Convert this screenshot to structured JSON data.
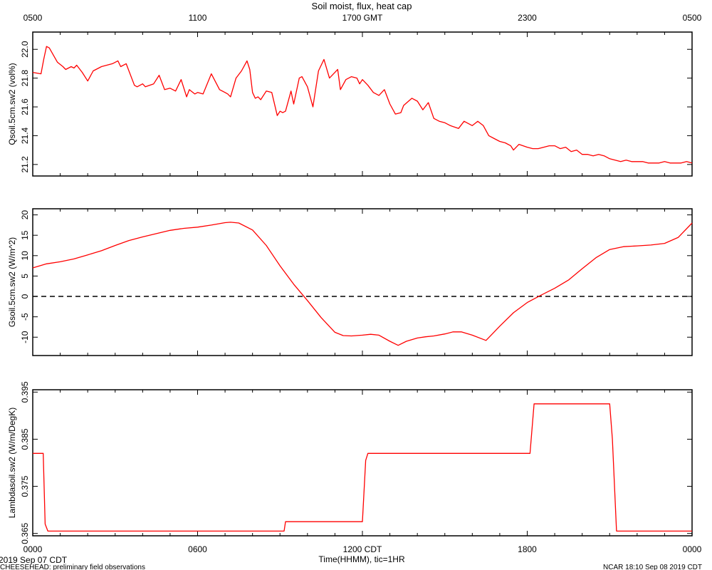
{
  "title": "Soil moist, flux, heat cap",
  "top_axis": {
    "ticks": [
      {
        "label": "0500",
        "h": 0
      },
      {
        "label": "1100",
        "h": 6
      },
      {
        "label": "1700 GMT",
        "h": 12
      },
      {
        "label": "2300",
        "h": 18
      },
      {
        "label": "0500",
        "h": 24
      }
    ]
  },
  "bottom_axis": {
    "ticks": [
      {
        "label": "0000",
        "h": 0
      },
      {
        "label": "0600",
        "h": 6
      },
      {
        "label": "1200 CDT",
        "h": 12
      },
      {
        "label": "1800",
        "h": 18
      },
      {
        "label": "0000",
        "h": 24
      }
    ],
    "xlabel": "Time(HHMM), tic=1HR"
  },
  "footer": {
    "date_left": "2019 Sep 07 CDT",
    "project": "CHEESEHEAD: preliminary field observations",
    "stamp": "NCAR 18:10 Sep 08 2019 CDT"
  },
  "colors": {
    "series": "#ff0000",
    "axis": "#000000"
  },
  "chart_data": [
    {
      "type": "line",
      "ylabel": "Qsoil.5cm.sw2 (vol%)",
      "ylim": [
        21.12,
        22.12
      ],
      "yticks": [
        21.2,
        21.4,
        21.6,
        21.8,
        22.0
      ],
      "ytick_labels": [
        "21.2",
        "21.4",
        "21.6",
        "21.8",
        "22.0"
      ],
      "x_hours": [
        0,
        0.3,
        0.4,
        0.5,
        0.6,
        0.9,
        1.1,
        1.2,
        1.4,
        1.5,
        1.6,
        1.8,
        2.0,
        2.2,
        2.5,
        2.9,
        3.1,
        3.2,
        3.4,
        3.7,
        3.8,
        4.0,
        4.1,
        4.4,
        4.6,
        4.8,
        5.0,
        5.1,
        5.2,
        5.4,
        5.6,
        5.7,
        5.9,
        6.0,
        6.2,
        6.5,
        6.8,
        7.0,
        7.1,
        7.2,
        7.4,
        7.6,
        7.8,
        7.9,
        8.0,
        8.1,
        8.2,
        8.3,
        8.5,
        8.7,
        8.9,
        9.0,
        9.1,
        9.2,
        9.4,
        9.5,
        9.7,
        9.8,
        10.0,
        10.2,
        10.4,
        10.6,
        10.8,
        11.0,
        11.1,
        11.2,
        11.4,
        11.6,
        11.8,
        11.9,
        12.0,
        12.2,
        12.4,
        12.6,
        12.8,
        13.0,
        13.2,
        13.4,
        13.5,
        13.8,
        14.0,
        14.2,
        14.4,
        14.6,
        14.8,
        15.0,
        15.2,
        15.5,
        15.7,
        15.9,
        16.0,
        16.2,
        16.4,
        16.6,
        16.8,
        17.0,
        17.2,
        17.4,
        17.5,
        17.7,
        18.0,
        18.2,
        18.4,
        18.6,
        18.8,
        19.0,
        19.2,
        19.4,
        19.6,
        19.8,
        20.0,
        20.2,
        20.4,
        20.6,
        20.8,
        21.0,
        21.2,
        21.4,
        21.6,
        21.8,
        22.0,
        22.2,
        22.4,
        22.6,
        22.8,
        23.0,
        23.2,
        23.4,
        23.6,
        23.8,
        24.0
      ],
      "values": [
        21.84,
        21.83,
        21.93,
        22.02,
        22.01,
        21.91,
        21.88,
        21.86,
        21.88,
        21.87,
        21.89,
        21.84,
        21.78,
        21.85,
        21.88,
        21.9,
        21.92,
        21.88,
        21.9,
        21.75,
        21.74,
        21.76,
        21.74,
        21.76,
        21.82,
        21.72,
        21.73,
        21.72,
        21.71,
        21.79,
        21.67,
        21.72,
        21.69,
        21.7,
        21.69,
        21.83,
        21.72,
        21.7,
        21.69,
        21.67,
        21.8,
        21.85,
        21.92,
        21.86,
        21.7,
        21.66,
        21.67,
        21.65,
        21.71,
        21.7,
        21.54,
        21.57,
        21.56,
        21.57,
        21.71,
        21.62,
        21.8,
        21.81,
        21.74,
        21.6,
        21.85,
        21.93,
        21.8,
        21.84,
        21.86,
        21.72,
        21.79,
        21.81,
        21.8,
        21.76,
        21.79,
        21.75,
        21.7,
        21.68,
        21.72,
        21.62,
        21.55,
        21.56,
        21.61,
        21.66,
        21.64,
        21.58,
        21.63,
        21.52,
        21.5,
        21.49,
        21.47,
        21.45,
        21.5,
        21.48,
        21.47,
        21.5,
        21.47,
        21.4,
        21.38,
        21.36,
        21.35,
        21.33,
        21.3,
        21.34,
        21.32,
        21.31,
        21.31,
        21.32,
        21.33,
        21.33,
        21.31,
        21.32,
        21.29,
        21.3,
        21.27,
        21.27,
        21.26,
        21.27,
        21.26,
        21.24,
        21.23,
        21.22,
        21.23,
        21.22,
        21.22,
        21.22,
        21.21,
        21.21,
        21.21,
        21.22,
        21.21,
        21.21,
        21.21,
        21.22,
        21.21
      ]
    },
    {
      "type": "line",
      "ylabel": "Gsoil.5cm.sw2 (W/m^2)",
      "ylim": [
        -14.5,
        21.5
      ],
      "yticks": [
        -10,
        -5,
        0,
        5,
        10,
        15,
        20
      ],
      "ytick_labels": [
        "-10",
        "-5",
        "0",
        "5",
        "10",
        "15",
        "20"
      ],
      "reference_line": 0,
      "x_hours": [
        0,
        0.5,
        1,
        1.5,
        2,
        2.5,
        3,
        3.5,
        4,
        4.5,
        5,
        5.5,
        6,
        6.5,
        7,
        7.2,
        7.5,
        8,
        8.5,
        9,
        9.5,
        10,
        10.5,
        11,
        11.3,
        11.6,
        12,
        12.3,
        12.6,
        13,
        13.3,
        13.6,
        14,
        14.3,
        14.6,
        15,
        15.3,
        15.6,
        16,
        16.5,
        17,
        17.5,
        18,
        18.5,
        19,
        19.5,
        20,
        20.5,
        21,
        21.5,
        22,
        22.5,
        23,
        23.5,
        24
      ],
      "values": [
        7,
        8,
        8.5,
        9.2,
        10.2,
        11.2,
        12.5,
        13.7,
        14.6,
        15.4,
        16.2,
        16.7,
        17.0,
        17.5,
        18.1,
        18.2,
        18.0,
        16.3,
        12.5,
        7.5,
        3.0,
        -1.0,
        -5.2,
        -8.8,
        -9.6,
        -9.7,
        -9.5,
        -9.3,
        -9.5,
        -11.0,
        -12.0,
        -11.0,
        -10.2,
        -9.9,
        -9.7,
        -9.2,
        -8.7,
        -8.7,
        -9.5,
        -10.8,
        -7.3,
        -4.0,
        -1.5,
        0.3,
        2.0,
        4.0,
        6.8,
        9.5,
        11.5,
        12.2,
        12.4,
        12.6,
        13.0,
        14.5,
        18.0
      ]
    },
    {
      "type": "line",
      "ylabel": "Lambdasoil.sw2 (W/m/DegK)",
      "ylim": [
        0.3645,
        0.3955
      ],
      "yticks": [
        0.365,
        0.375,
        0.385,
        0.395
      ],
      "ytick_labels": [
        "0.365",
        "0.375",
        "0.385",
        "0.395"
      ],
      "x_hours": [
        0,
        0.38,
        0.45,
        0.55,
        9.15,
        9.2,
        12.0,
        12.12,
        12.2,
        18.1,
        18.25,
        21.0,
        21.1,
        21.25,
        24
      ],
      "values": [
        0.382,
        0.382,
        0.367,
        0.3655,
        0.3655,
        0.3675,
        0.3675,
        0.3805,
        0.382,
        0.382,
        0.3925,
        0.3925,
        0.385,
        0.3655,
        0.3655
      ]
    }
  ]
}
